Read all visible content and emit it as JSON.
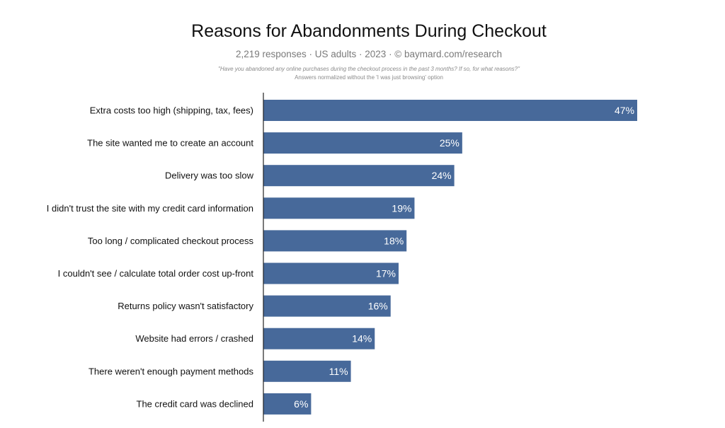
{
  "chart_data": {
    "type": "bar",
    "orientation": "horizontal",
    "title": "Reasons for Abandonments During Checkout",
    "subtitle": "2,219 responses · US adults · 2023 · © baymard.com/research",
    "note_question": "\"Have you abandoned any online purchases during the checkout process in the past 3 months? If so, for what reasons?\"",
    "note_normalization": "Answers normalized without the 'I was just browsing' option",
    "categories": [
      "Extra costs too high (shipping, tax, fees)",
      "The site wanted me to create an account",
      "Delivery was too slow",
      "I didn't trust the site with my credit card information",
      "Too long / complicated checkout process",
      "I couldn't see / calculate total order cost up-front",
      "Returns policy wasn't satisfactory",
      "Website had errors / crashed",
      "There weren't enough payment methods",
      "The credit card was declined"
    ],
    "values": [
      47,
      25,
      24,
      19,
      18,
      17,
      16,
      14,
      11,
      6
    ],
    "value_labels": [
      "47%",
      "25%",
      "24%",
      "19%",
      "18%",
      "17%",
      "16%",
      "14%",
      "11%",
      "6%"
    ],
    "unit": "%",
    "xlim": [
      0,
      47
    ],
    "grid": false,
    "legend": "none",
    "bar_color": "#47699a",
    "label_color": "#ffffff"
  }
}
